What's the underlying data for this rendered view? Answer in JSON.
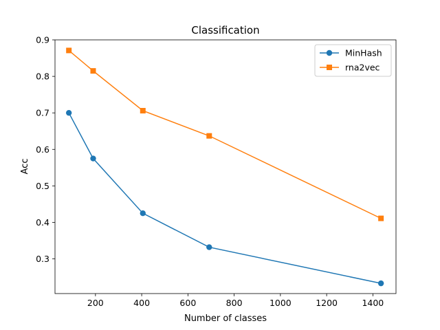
{
  "chart_data": {
    "type": "line",
    "title": "Classification",
    "xlabel": "Number of classes",
    "ylabel": "Acc",
    "xlim": [
      25,
      1500
    ],
    "ylim": [
      0.205,
      0.9
    ],
    "xticks": [
      200,
      400,
      600,
      800,
      1000,
      1200,
      1400
    ],
    "yticks": [
      0.3,
      0.4,
      0.5,
      0.6,
      0.7,
      0.8,
      0.9
    ],
    "grid": false,
    "legend_position": "top-right",
    "series": [
      {
        "name": "MinHash",
        "color": "#1f77b4",
        "marker": "circle",
        "x": [
          85,
          190,
          405,
          692,
          1435
        ],
        "y": [
          0.7,
          0.575,
          0.425,
          0.332,
          0.233
        ]
      },
      {
        "name": "rna2vec",
        "color": "#ff7f0e",
        "marker": "square",
        "x": [
          85,
          190,
          405,
          692,
          1435
        ],
        "y": [
          0.871,
          0.815,
          0.706,
          0.637,
          0.411
        ]
      }
    ]
  }
}
